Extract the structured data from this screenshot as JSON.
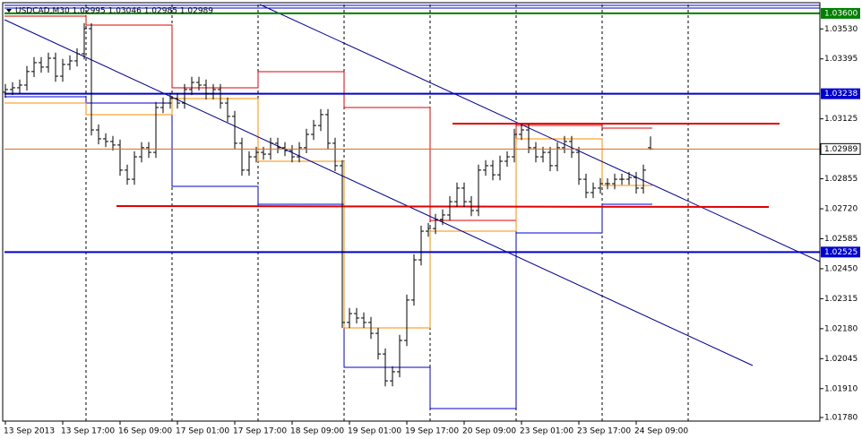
{
  "chart_data": {
    "type": "ohlc",
    "title": "USDCAD,M30 1.02995 1.03046 1.02985 1.02989",
    "color": "#000000",
    "categories": [
      "13 Sep 2013",
      null,
      null,
      null,
      null,
      null,
      null,
      null,
      "13 Sep 17:00",
      null,
      null,
      null,
      null,
      null,
      null,
      null,
      "16 Sep 09:00",
      null,
      null,
      null,
      null,
      null,
      null,
      null,
      "17 Sep 01:00",
      null,
      null,
      null,
      null,
      null,
      null,
      null,
      "17 Sep 17:00",
      null,
      null,
      null,
      null,
      null,
      null,
      null,
      "18 Sep 09:00",
      null,
      null,
      null,
      null,
      null,
      null,
      null,
      "19 Sep 01:00",
      null,
      null,
      null,
      null,
      null,
      null,
      null,
      "19 Sep 17:00",
      null,
      null,
      null,
      null,
      null,
      null,
      null,
      "20 Sep 09:00",
      null,
      null,
      null,
      null,
      null,
      null,
      null,
      "23 Sep 01:00",
      null,
      null,
      null,
      null,
      null,
      null,
      null,
      "23 Sep 17:00",
      null,
      null,
      null,
      null,
      null,
      null,
      null,
      "24 Sep 09:00",
      null,
      null
    ],
    "bars": [
      [
        1.03245,
        1.03282,
        1.0322,
        1.03257
      ],
      [
        1.03257,
        1.0329,
        1.03232,
        1.03265
      ],
      [
        1.03265,
        1.03302,
        1.0324,
        1.03277
      ],
      [
        1.03277,
        1.03363,
        1.03252,
        1.03338
      ],
      [
        1.03338,
        1.03403,
        1.03313,
        1.03378
      ],
      [
        1.03378,
        1.03403,
        1.03333,
        1.03358
      ],
      [
        1.03358,
        1.03423,
        1.03333,
        1.03398
      ],
      [
        1.03398,
        1.03423,
        1.03292,
        1.03317
      ],
      [
        1.03317,
        1.03395,
        1.03292,
        1.0337
      ],
      [
        1.0337,
        1.03411,
        1.03345,
        1.03386
      ],
      [
        1.03386,
        1.03443,
        1.03361,
        1.03418
      ],
      [
        1.03418,
        1.03556,
        1.03393,
        1.03531
      ],
      [
        1.03531,
        1.03556,
        1.0305,
        1.03075
      ],
      [
        1.03075,
        1.031,
        1.0301,
        1.03035
      ],
      [
        1.03035,
        1.0306,
        1.02998,
        1.03023
      ],
      [
        1.03023,
        1.03048,
        1.02982,
        1.03007
      ],
      [
        1.03007,
        1.03032,
        1.02869,
        1.02894
      ],
      [
        1.02894,
        1.02919,
        1.02828,
        1.02853
      ],
      [
        1.02853,
        1.02979,
        1.02828,
        1.02954
      ],
      [
        1.02954,
        1.0302,
        1.02929,
        1.02995
      ],
      [
        1.02995,
        1.0302,
        1.02949,
        1.02974
      ],
      [
        1.02974,
        1.03201,
        1.02949,
        1.03176
      ],
      [
        1.03176,
        1.03221,
        1.03151,
        1.03196
      ],
      [
        1.03196,
        1.03242,
        1.03171,
        1.03217
      ],
      [
        1.03217,
        1.03242,
        1.03171,
        1.03196
      ],
      [
        1.03196,
        1.03282,
        1.03171,
        1.03257
      ],
      [
        1.03257,
        1.03314,
        1.03232,
        1.03289
      ],
      [
        1.03289,
        1.03314,
        1.03252,
        1.03277
      ],
      [
        1.03277,
        1.03302,
        1.03212,
        1.03237
      ],
      [
        1.03237,
        1.03282,
        1.03212,
        1.03257
      ],
      [
        1.03257,
        1.03282,
        1.03171,
        1.03196
      ],
      [
        1.03196,
        1.03221,
        1.03111,
        1.03136
      ],
      [
        1.03136,
        1.03161,
        1.0299,
        1.03015
      ],
      [
        1.03015,
        1.0304,
        1.02869,
        1.02894
      ],
      [
        1.02894,
        1.02979,
        1.02869,
        1.02954
      ],
      [
        1.02954,
        1.02999,
        1.02929,
        1.02974
      ],
      [
        1.02974,
        1.02999,
        1.02941,
        1.02966
      ],
      [
        1.02966,
        1.0304,
        1.02941,
        1.03015
      ],
      [
        1.03015,
        1.0304,
        1.0297,
        1.02995
      ],
      [
        1.02995,
        1.0302,
        1.02957,
        1.02982
      ],
      [
        1.02982,
        1.03007,
        1.02929,
        1.02954
      ],
      [
        1.02954,
        1.0302,
        1.02929,
        1.02995
      ],
      [
        1.02995,
        1.0308,
        1.0297,
        1.03055
      ],
      [
        1.03055,
        1.0312,
        1.0303,
        1.03095
      ],
      [
        1.03095,
        1.03169,
        1.0307,
        1.03144
      ],
      [
        1.03144,
        1.03169,
        1.0299,
        1.03015
      ],
      [
        1.03015,
        1.0304,
        1.02889,
        1.02914
      ],
      [
        1.02914,
        1.02939,
        1.02183,
        1.02208
      ],
      [
        1.02208,
        1.02273,
        1.02183,
        1.02248
      ],
      [
        1.02248,
        1.02273,
        1.02203,
        1.02228
      ],
      [
        1.02228,
        1.02253,
        1.02183,
        1.02208
      ],
      [
        1.02208,
        1.02233,
        1.02134,
        1.02159
      ],
      [
        1.02159,
        1.02184,
        1.02041,
        1.02066
      ],
      [
        1.02066,
        1.02091,
        1.0192,
        1.01945
      ],
      [
        1.01945,
        1.02011,
        1.0192,
        1.01986
      ],
      [
        1.01986,
        1.02152,
        1.01961,
        1.02127
      ],
      [
        1.02127,
        1.02334,
        1.02102,
        1.02309
      ],
      [
        1.02309,
        1.02515,
        1.02284,
        1.0249
      ],
      [
        1.0249,
        1.02644,
        1.02465,
        1.02619
      ],
      [
        1.02619,
        1.02656,
        1.02594,
        1.02631
      ],
      [
        1.02631,
        1.02697,
        1.02606,
        1.02672
      ],
      [
        1.02672,
        1.02717,
        1.02647,
        1.02692
      ],
      [
        1.02692,
        1.02777,
        1.02667,
        1.02752
      ],
      [
        1.02752,
        1.02838,
        1.02727,
        1.02813
      ],
      [
        1.02813,
        1.02838,
        1.02727,
        1.02752
      ],
      [
        1.02752,
        1.02777,
        1.02687,
        1.02712
      ],
      [
        1.02712,
        1.02919,
        1.02687,
        1.02894
      ],
      [
        1.02894,
        1.02939,
        1.02869,
        1.02914
      ],
      [
        1.02914,
        1.02939,
        1.02848,
        1.02873
      ],
      [
        1.02873,
        1.02959,
        1.02848,
        1.02934
      ],
      [
        1.02934,
        1.02979,
        1.02909,
        1.02954
      ],
      [
        1.02954,
        1.0308,
        1.02929,
        1.03055
      ],
      [
        1.03055,
        1.031,
        1.0303,
        1.03075
      ],
      [
        1.03075,
        1.031,
        1.0297,
        1.02995
      ],
      [
        1.02995,
        1.0302,
        1.02929,
        1.02954
      ],
      [
        1.02954,
        1.02999,
        1.02929,
        1.02974
      ],
      [
        1.02974,
        1.02999,
        1.02889,
        1.02914
      ],
      [
        1.02914,
        1.0302,
        1.02889,
        1.02995
      ],
      [
        1.02995,
        1.03048,
        1.0297,
        1.03023
      ],
      [
        1.03023,
        1.03048,
        1.02949,
        1.02974
      ],
      [
        1.02974,
        1.02999,
        1.02828,
        1.02853
      ],
      [
        1.02853,
        1.02878,
        1.02768,
        1.02793
      ],
      [
        1.02793,
        1.02838,
        1.02768,
        1.02813
      ],
      [
        1.02813,
        1.02858,
        1.02788,
        1.02833
      ],
      [
        1.02833,
        1.02858,
        1.02808,
        1.02833
      ],
      [
        1.02833,
        1.02878,
        1.02808,
        1.02853
      ],
      [
        1.02853,
        1.02878,
        1.02828,
        1.02853
      ],
      [
        1.02853,
        1.02886,
        1.02828,
        1.02861
      ],
      [
        1.02861,
        1.02886,
        1.02788,
        1.02813
      ],
      [
        1.02813,
        1.02919,
        1.02788,
        1.02894
      ],
      [
        1.02995,
        1.03046,
        1.02985,
        1.02989
      ]
    ],
    "ylim": [
      1.0178,
      1.0364
    ],
    "yticks": [
      {
        "value": 1.0353,
        "label": "1.03530"
      },
      1.03395,
      1.03125,
      1.02855,
      {
        "value": 1.0272,
        "label": "1.02720"
      },
      1.02585,
      {
        "value": 1.0245,
        "label": "1.02450"
      },
      1.02315,
      {
        "value": 1.0218,
        "label": "1.02180"
      },
      1.02045,
      {
        "value": 1.0191,
        "label": "1.01910"
      },
      {
        "value": 1.0178,
        "label": "1.01780"
      }
    ],
    "hlines": [
      {
        "value": 1.036,
        "label": "1.03600",
        "color": "#008000"
      },
      {
        "value": 1.03238,
        "label": "1.03238",
        "color": "#0000cd"
      },
      {
        "value": 1.02525,
        "label": "1.02525",
        "color": "#0000cd"
      }
    ],
    "bid_color": "#d2691e"
  }
}
